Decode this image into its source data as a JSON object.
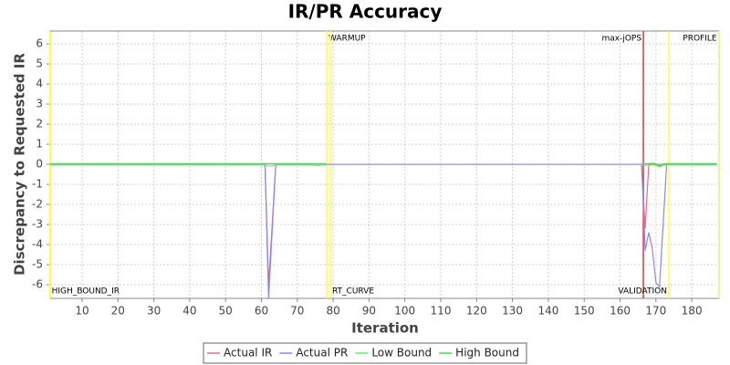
{
  "chart_data": {
    "type": "line",
    "title": "IR/PR Accuracy",
    "x_label": "Iteration",
    "y_label": "Discrepancy to Requested IR",
    "x": [
      1,
      20,
      40,
      60,
      61,
      62,
      63,
      64,
      70,
      76,
      78,
      79,
      165,
      166,
      167,
      168,
      169,
      170,
      171,
      172,
      173,
      180,
      187
    ],
    "series": [
      {
        "name": "Actual IR",
        "color": "#dd6f8f",
        "values": [
          0,
          0,
          0,
          0,
          0,
          -6,
          -3,
          0,
          0,
          -0.05,
          0,
          0,
          0,
          0,
          -3.2,
          0,
          0,
          0,
          0,
          0,
          0,
          0,
          0
        ]
      },
      {
        "name": "Actual PR",
        "color": "#8888ff",
        "values": [
          0,
          0,
          0,
          0,
          0,
          -6.7,
          -3.3,
          0,
          0,
          -0.05,
          0,
          0,
          0,
          0,
          -4.3,
          -3.4,
          -4.2,
          -5.9,
          -6.1,
          -3,
          0,
          0,
          0
        ]
      },
      {
        "name": "Low Bound",
        "color": "#66ee66",
        "values": [
          -0.03,
          -0.03,
          -0.03,
          -0.03,
          -0.03,
          -0.08,
          -0.08,
          -0.03,
          -0.03,
          -0.03,
          -0.03,
          null,
          null,
          -0.05,
          -0.05,
          -0.05,
          -0.02,
          -0.05,
          -0.12,
          -0.05,
          -0.03,
          -0.03,
          -0.03
        ]
      },
      {
        "name": "High Bound",
        "color": "#44dd44",
        "values": [
          0.03,
          0.03,
          0.03,
          0.03,
          0.03,
          0.03,
          0.03,
          0.03,
          0.03,
          0.03,
          0.03,
          null,
          null,
          0.03,
          0.03,
          0.03,
          0.05,
          0.02,
          -0.08,
          0.02,
          0.03,
          0.03,
          0.03
        ]
      }
    ],
    "markers": [
      {
        "x": 1,
        "label": "HIGH_BOUND_IR",
        "color": "#ffff44",
        "anchor": "bottom-right"
      },
      {
        "x": 78.2,
        "label": "WARMUP",
        "color": "#ffff44",
        "anchor": "top-right"
      },
      {
        "x": 79.2,
        "label": "RT_CURVE",
        "color": "#ffff44",
        "anchor": "bottom-right"
      },
      {
        "x": 166.5,
        "label": "max-jOPS",
        "color": "#ee3333",
        "anchor": "top-left"
      },
      {
        "x": 173.6,
        "label": "VALIDATION",
        "color": "#ffff44",
        "anchor": "bottom-left"
      },
      {
        "x": 187.5,
        "label": "PROFILE",
        "color": "#ffff44",
        "anchor": "top-left"
      }
    ],
    "xlim": [
      1.1,
      187.6
    ],
    "ylim": [
      -6.68,
      6.64
    ],
    "xticks": [
      10,
      20,
      30,
      40,
      50,
      60,
      70,
      80,
      90,
      100,
      110,
      120,
      130,
      140,
      150,
      160,
      170,
      180
    ],
    "yticks": [
      -6,
      -5,
      -4,
      -3,
      -2,
      -1,
      0,
      1,
      2,
      3,
      4,
      5,
      6
    ],
    "grid": true,
    "legend": "bottom"
  }
}
